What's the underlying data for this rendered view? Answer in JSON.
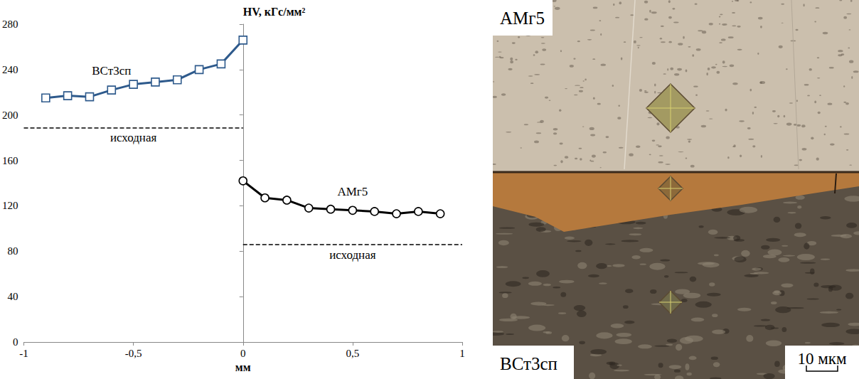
{
  "chart_data": {
    "type": "line",
    "y_label": "HV, кГс/мм²",
    "x_label": "мм",
    "xlim": [
      -1,
      1
    ],
    "xticks": [
      -1,
      {
        "value": -0.5,
        "label": "-0,5"
      },
      0,
      {
        "value": 0.5,
        "label": "0,5"
      },
      1
    ],
    "ylim": [
      0,
      280
    ],
    "yticks": [
      0,
      40,
      80,
      120,
      160,
      200,
      240,
      280
    ],
    "grid": false,
    "series": [
      {
        "name": "ВСт3сп",
        "color": "#2e5a8c",
        "marker": "square",
        "line_style": "solid",
        "x": [
          -0.9,
          -0.8,
          -0.7,
          -0.6,
          -0.5,
          -0.4,
          -0.3,
          -0.2,
          -0.1,
          0
        ],
        "values": [
          215,
          217,
          216,
          222,
          227,
          229,
          231,
          240,
          245,
          266
        ],
        "reference": {
          "label": "исходная",
          "value": 189,
          "x": [
            -1,
            0
          ]
        }
      },
      {
        "name": "АМг5",
        "color": "#000000",
        "marker": "circle",
        "line_style": "solid",
        "x": [
          0,
          0.1,
          0.2,
          0.3,
          0.4,
          0.5,
          0.6,
          0.7,
          0.8,
          0.9
        ],
        "values": [
          142,
          127,
          125,
          118,
          117,
          116,
          115,
          113,
          115,
          113
        ],
        "reference": {
          "label": "исходная",
          "value": 86,
          "x": [
            0,
            1
          ]
        }
      }
    ]
  },
  "image": {
    "top_label": "АМг5",
    "bottom_label": "ВСт3сп",
    "scale_bar": "10 мкм"
  }
}
